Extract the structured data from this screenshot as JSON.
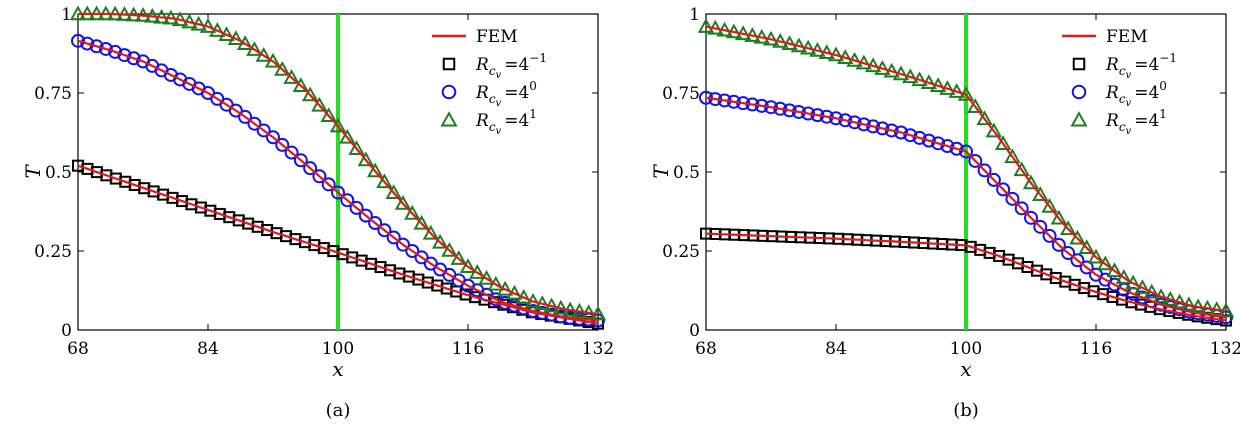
{
  "chart_data": [
    {
      "type": "line",
      "caption": "(a)",
      "xlabel": "x",
      "ylabel": "T",
      "xlim": [
        68,
        132
      ],
      "ylim": [
        0,
        1
      ],
      "xticks": [
        "68",
        "84",
        "100",
        "116",
        "132"
      ],
      "yticks": [
        "0",
        "0.25",
        "0.5",
        "0.75",
        "1"
      ],
      "vline": {
        "x": 100,
        "color": "#22dd22"
      },
      "legend": [
        {
          "label": "FEM",
          "marker": "line",
          "color": "#e0191b"
        },
        {
          "label_base": "R",
          "label_sub": "c",
          "label_subsub": "v",
          "label_eq": "=4",
          "label_sup": "−1",
          "marker": "square",
          "color": "#000000"
        },
        {
          "label_base": "R",
          "label_sub": "c",
          "label_subsub": "v",
          "label_eq": "=4",
          "label_sup": "0",
          "marker": "circle",
          "color": "#1414e6"
        },
        {
          "label_base": "R",
          "label_sub": "c",
          "label_subsub": "v",
          "label_eq": "=4",
          "label_sup": "1",
          "marker": "triangle",
          "color": "#1e7d1e"
        }
      ],
      "series": [
        {
          "name": "R_cv=4^-1",
          "marker": "square",
          "color": "#000000",
          "x": [
            68,
            76,
            84,
            92,
            100,
            108,
            116,
            124,
            132
          ],
          "y": [
            0.52,
            0.45,
            0.38,
            0.31,
            0.245,
            0.175,
            0.11,
            0.055,
            0.02
          ]
        },
        {
          "name": "R_cv=4^0",
          "marker": "circle",
          "color": "#1414e6",
          "x": [
            68,
            72,
            76,
            80,
            84,
            88,
            92,
            96,
            100,
            104,
            108,
            112,
            116,
            120,
            124,
            128,
            132
          ],
          "y": [
            0.915,
            0.885,
            0.85,
            0.8,
            0.75,
            0.685,
            0.61,
            0.525,
            0.435,
            0.35,
            0.27,
            0.2,
            0.14,
            0.09,
            0.06,
            0.04,
            0.03
          ]
        },
        {
          "name": "R_cv=4^1",
          "marker": "triangle",
          "color": "#1e7d1e",
          "x": [
            68,
            72,
            76,
            80,
            84,
            88,
            92,
            96,
            100,
            104,
            108,
            112,
            116,
            120,
            124,
            128,
            132
          ],
          "y": [
            1.0,
            1.0,
            0.995,
            0.985,
            0.96,
            0.915,
            0.85,
            0.76,
            0.645,
            0.52,
            0.4,
            0.29,
            0.2,
            0.135,
            0.09,
            0.065,
            0.05
          ]
        }
      ]
    },
    {
      "type": "line",
      "caption": "(b)",
      "xlabel": "x",
      "ylabel": "T",
      "xlim": [
        68,
        132
      ],
      "ylim": [
        0,
        1
      ],
      "xticks": [
        "68",
        "84",
        "100",
        "116",
        "132"
      ],
      "yticks": [
        "0",
        "0.25",
        "0.5",
        "0.75",
        "1"
      ],
      "vline": {
        "x": 100,
        "color": "#22dd22"
      },
      "legend": [
        {
          "label": "FEM",
          "marker": "line",
          "color": "#e0191b"
        },
        {
          "label_base": "R",
          "label_sub": "c",
          "label_subsub": "v",
          "label_eq": "=4",
          "label_sup": "−1",
          "marker": "square",
          "color": "#000000"
        },
        {
          "label_base": "R",
          "label_sub": "c",
          "label_subsub": "v",
          "label_eq": "=4",
          "label_sup": "0",
          "marker": "circle",
          "color": "#1414e6"
        },
        {
          "label_base": "R",
          "label_sub": "c",
          "label_subsub": "v",
          "label_eq": "=4",
          "label_sup": "1",
          "marker": "triangle",
          "color": "#1e7d1e"
        }
      ],
      "series": [
        {
          "name": "R_cv=4^-1",
          "marker": "square",
          "color": "#000000",
          "x": [
            68,
            76,
            84,
            92,
            100,
            104,
            108,
            112,
            116,
            120,
            124,
            128,
            132
          ],
          "y": [
            0.305,
            0.297,
            0.289,
            0.279,
            0.268,
            0.235,
            0.195,
            0.155,
            0.12,
            0.09,
            0.065,
            0.045,
            0.03
          ]
        },
        {
          "name": "R_cv=4^0",
          "marker": "circle",
          "color": "#1414e6",
          "x": [
            68,
            76,
            84,
            92,
            100,
            104,
            108,
            112,
            116,
            120,
            124,
            128,
            132
          ],
          "y": [
            0.735,
            0.705,
            0.67,
            0.625,
            0.565,
            0.46,
            0.355,
            0.255,
            0.175,
            0.12,
            0.08,
            0.055,
            0.04
          ]
        },
        {
          "name": "R_cv=4^1",
          "marker": "triangle",
          "color": "#1e7d1e",
          "x": [
            68,
            76,
            84,
            92,
            100,
            104,
            108,
            112,
            116,
            120,
            124,
            128,
            132
          ],
          "y": [
            0.96,
            0.92,
            0.87,
            0.81,
            0.745,
            0.61,
            0.465,
            0.335,
            0.23,
            0.155,
            0.105,
            0.075,
            0.06
          ]
        }
      ]
    }
  ]
}
